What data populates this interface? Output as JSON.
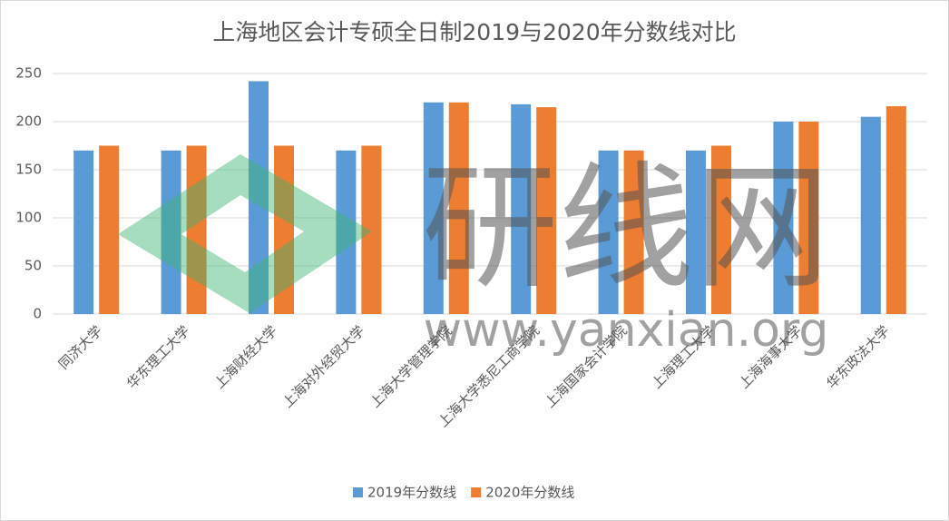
{
  "chart_data": {
    "type": "bar",
    "title": "上海地区会计专硕全日制2019与2020年分数线对比",
    "categories": [
      "同济大学",
      "华东理工大学",
      "上海财经大学",
      "上海对外经贸大学",
      "上海大学管理学院",
      "上海大学悉尼工商学院",
      "上海国家会计学院",
      "上海理工大学",
      "上海海事大学",
      "华东政法大学"
    ],
    "series": [
      {
        "name": "2019年分数线",
        "color": "#5b9bd5",
        "values": [
          170,
          170,
          242,
          170,
          220,
          218,
          170,
          170,
          200,
          205
        ]
      },
      {
        "name": "2020年分数线",
        "color": "#ed7d31",
        "values": [
          175,
          175,
          175,
          175,
          220,
          215,
          170,
          175,
          200,
          216
        ]
      }
    ],
    "ylim": [
      0,
      250
    ],
    "yticks": [
      0,
      50,
      100,
      150,
      200,
      250
    ],
    "grid": true,
    "legend": "bottom",
    "watermark": {
      "text": "研线网",
      "url": "www.yanxian.org"
    }
  }
}
